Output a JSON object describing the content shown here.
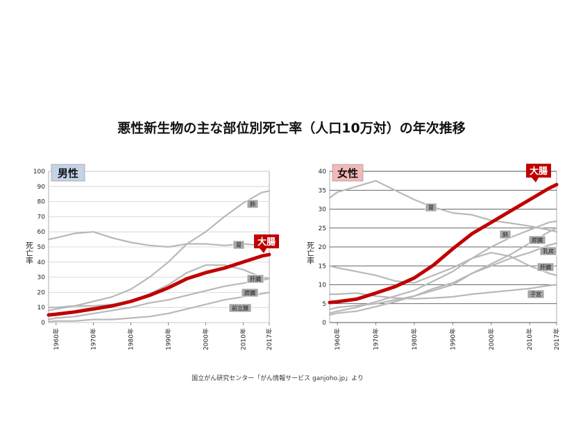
{
  "title": "悪性新生物の主な部位別死亡率（人口10万対）の年次推移",
  "footer": "国立がん研究センター「がん情報サービス ganjoho.jp」より",
  "colors": {
    "highlight": "#c00000",
    "other": "#b8b8b8",
    "male_badge": "#c5d3e8",
    "female_badge": "#f4b8b8",
    "label_box": "#a6a6a6",
    "grid": "#000000"
  },
  "chart_data": [
    {
      "type": "line",
      "panel": "男性",
      "ylabel": "死亡率",
      "ylim": [
        0,
        100
      ],
      "yticks": [
        0,
        10,
        20,
        30,
        40,
        50,
        60,
        70,
        80,
        90,
        100
      ],
      "xlim": [
        1958,
        2017
      ],
      "xticks": [
        "1960年",
        "1970年",
        "1980年",
        "1990年",
        "2000年",
        "2010年",
        "2017年"
      ],
      "x": [
        1958,
        1960,
        1965,
        1970,
        1975,
        1980,
        1985,
        1990,
        1995,
        2000,
        2005,
        2010,
        2015,
        2017
      ],
      "grid": "horizontal",
      "series": [
        {
          "name": "大腸",
          "highlight": true,
          "values": [
            5,
            5.5,
            7,
            9,
            11,
            14,
            18,
            23,
            29,
            33,
            36,
            40,
            44,
            45
          ]
        },
        {
          "name": "肺",
          "values": [
            8,
            9,
            11,
            14,
            17,
            22,
            30,
            40,
            52,
            60,
            70,
            79,
            86,
            87
          ]
        },
        {
          "name": "胃",
          "values": [
            55,
            56,
            59,
            60,
            56,
            53,
            51,
            50,
            52,
            52,
            51,
            52,
            51,
            50
          ]
        },
        {
          "name": "肝臓",
          "values": [
            10,
            10,
            11,
            11,
            12,
            14,
            19,
            25,
            33,
            38,
            38,
            35,
            30,
            29
          ]
        },
        {
          "name": "膵臓",
          "values": [
            2,
            3,
            4,
            6,
            8,
            10,
            13,
            15,
            18,
            21,
            24,
            26,
            28,
            29
          ]
        },
        {
          "name": "前立腺",
          "values": [
            0.5,
            1,
            1,
            2,
            2,
            3,
            4,
            6,
            9,
            12,
            15,
            17,
            19,
            20
          ]
        }
      ]
    },
    {
      "type": "line",
      "panel": "女性",
      "ylabel": "死亡率",
      "ylim": [
        0,
        40
      ],
      "yticks": [
        0,
        5,
        10,
        15,
        20,
        25,
        30,
        35,
        40
      ],
      "xlim": [
        1958,
        2017
      ],
      "xticks": [
        "1960年",
        "1970年",
        "1980年",
        "1990年",
        "2000年",
        "2010年",
        "2017年"
      ],
      "x": [
        1958,
        1960,
        1965,
        1970,
        1975,
        1980,
        1985,
        1990,
        1995,
        2000,
        2005,
        2010,
        2015,
        2017
      ],
      "grid": "horizontal",
      "series": [
        {
          "name": "大腸",
          "highlight": true,
          "values": [
            5.3,
            5.5,
            6.2,
            7.8,
            9.5,
            11.8,
            15.2,
            19.5,
            23.5,
            26.5,
            29.5,
            32.5,
            35.5,
            36.5
          ]
        },
        {
          "name": "胃",
          "values": [
            33,
            34.5,
            36,
            37.5,
            35,
            32.5,
            30.5,
            29,
            28.5,
            27,
            26.3,
            25.5,
            24.5,
            24
          ]
        },
        {
          "name": "肺",
          "values": [
            2.5,
            3,
            4,
            5.5,
            7,
            8.5,
            11,
            13.5,
            17,
            20,
            22.5,
            24.5,
            26.5,
            26.8
          ]
        },
        {
          "name": "膵臓",
          "values": [
            2,
            2.5,
            3,
            4.2,
            5.5,
            7,
            9,
            10.5,
            13,
            15.5,
            18,
            21,
            24,
            25
          ]
        },
        {
          "name": "乳房",
          "values": [
            3.5,
            4,
            4.5,
            5,
            6,
            7,
            8.5,
            10,
            13,
            15,
            17,
            18.5,
            20.5,
            21
          ]
        },
        {
          "name": "肝臓",
          "values": [
            15,
            14.5,
            13.5,
            12.5,
            11,
            10.5,
            12.5,
            14.5,
            17,
            18.5,
            17.5,
            15,
            13,
            12.5
          ]
        },
        {
          "name": "子宮",
          "values": [
            7.5,
            7.5,
            7.8,
            7,
            6.5,
            6.3,
            6.5,
            6.8,
            7.5,
            8,
            8.5,
            9,
            9.8,
            10
          ]
        }
      ]
    }
  ]
}
